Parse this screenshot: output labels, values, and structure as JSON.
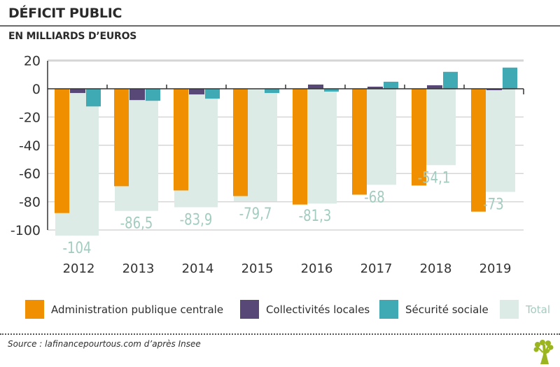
{
  "header": {
    "title": "DÉFICIT PUBLIC",
    "subtitle": "EN MILLIARDS D’EUROS"
  },
  "colors": {
    "orange": "#F09000",
    "purple": "#574878",
    "teal": "#3FA9B4",
    "total": "#DCEBE6",
    "total_label": "#A3CCC0"
  },
  "chart_data": {
    "type": "bar",
    "title": "DÉFICIT PUBLIC",
    "subtitle": "EN MILLIARDS D’EUROS",
    "xlabel": "",
    "ylabel": "",
    "ylim": [
      -100,
      20
    ],
    "yticks": [
      20,
      0,
      -20,
      -40,
      -60,
      -80,
      -100
    ],
    "grid": true,
    "legend_position": "bottom",
    "categories": [
      "2012",
      "2013",
      "2014",
      "2015",
      "2016",
      "2017",
      "2018",
      "2019"
    ],
    "series": [
      {
        "name": "Administration publique centrale",
        "color": "#F09000",
        "values": [
          -88,
          -69,
          -72,
          -76,
          -82,
          -75,
          -68.5,
          -87
        ]
      },
      {
        "name": "Collectivités locales",
        "color": "#574878",
        "values": [
          -3,
          -8,
          -4,
          0,
          3,
          1.5,
          2.5,
          -1
        ]
      },
      {
        "name": "Sécurité sociale",
        "color": "#3FA9B4",
        "values": [
          -12.5,
          -8.5,
          -7,
          -3,
          -2,
          5,
          12,
          15
        ]
      },
      {
        "name": "Total",
        "color": "#DCEBE6",
        "values": [
          -104,
          -86.5,
          -83.9,
          -79.7,
          -81.3,
          -68,
          -54.1,
          -73
        ]
      }
    ],
    "total_labels": [
      "-104",
      "-86,5",
      "-83,9",
      "-79,7",
      "-81,3",
      "-68",
      "-54,1",
      "-73"
    ]
  },
  "legend": [
    {
      "label": "Administration publique centrale",
      "color": "#F09000"
    },
    {
      "label": "Collectivités locales",
      "color": "#574878"
    },
    {
      "label": "Sécurité sociale",
      "color": "#3FA9B4"
    },
    {
      "label": "Total",
      "color": "#DCEBE6",
      "text_color": "#A3CCC0"
    }
  ],
  "footer": {
    "source": "Source : lafinancepourtous.com d’après Insee",
    "logo_icon": "tree-icon"
  }
}
